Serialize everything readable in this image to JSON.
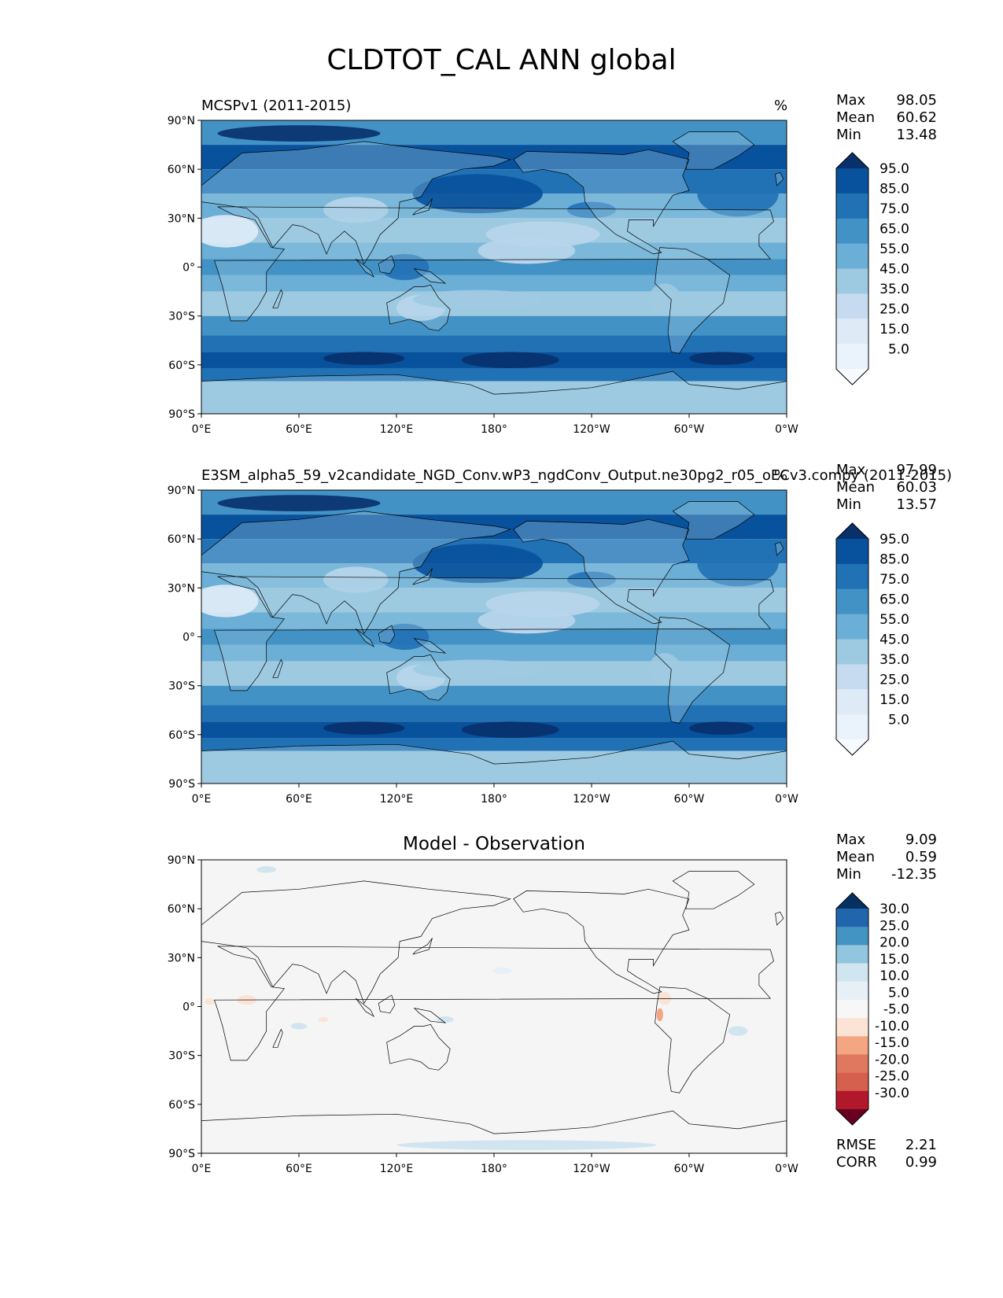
{
  "figure": {
    "title": "CLDTOT_CAL ANN global"
  },
  "chart_data": [
    {
      "type": "heatmap",
      "panel": "test",
      "title": "MCSPv1 (2011-2015)",
      "units": "%",
      "stats": [
        {
          "label": "Max",
          "value": "98.05"
        },
        {
          "label": "Mean",
          "value": "60.62"
        },
        {
          "label": "Min",
          "value": "13.48"
        }
      ],
      "colorbar": {
        "levels": [
          "95.0",
          "85.0",
          "75.0",
          "65.0",
          "55.0",
          "45.0",
          "35.0",
          "25.0",
          "15.0",
          "5.0"
        ],
        "colors": [
          "#08306b",
          "#08519c",
          "#2171b5",
          "#4292c6",
          "#6baed6",
          "#9ecae1",
          "#c6dbef",
          "#deebf7",
          "#eaf2fb",
          "#f7fbff"
        ]
      },
      "x_ticks": [
        "0°E",
        "60°E",
        "120°E",
        "180°",
        "120°W",
        "60°W",
        "0°W"
      ],
      "y_ticks": [
        "90°N",
        "60°N",
        "30°N",
        "0°",
        "30°S",
        "60°S",
        "90°S"
      ],
      "xlim": [
        0,
        360
      ],
      "ylim": [
        -90,
        90
      ]
    },
    {
      "type": "heatmap",
      "panel": "reference",
      "title": "E3SM_alpha5_59_v2candidate_NGD_Conv.wP3_ngdConv_Output.ne30pg2_r05_oECv3.compy (2011-2015)",
      "units": "%",
      "stats": [
        {
          "label": "Max",
          "value": "97.99"
        },
        {
          "label": "Mean",
          "value": "60.03"
        },
        {
          "label": "Min",
          "value": "13.57"
        }
      ],
      "colorbar": {
        "levels": [
          "95.0",
          "85.0",
          "75.0",
          "65.0",
          "55.0",
          "45.0",
          "35.0",
          "25.0",
          "15.0",
          "5.0"
        ],
        "colors": [
          "#08306b",
          "#08519c",
          "#2171b5",
          "#4292c6",
          "#6baed6",
          "#9ecae1",
          "#c6dbef",
          "#deebf7",
          "#eaf2fb",
          "#f7fbff"
        ]
      },
      "x_ticks": [
        "0°E",
        "60°E",
        "120°E",
        "180°",
        "120°W",
        "60°W",
        "0°W"
      ],
      "y_ticks": [
        "90°N",
        "60°N",
        "30°N",
        "0°",
        "30°S",
        "60°S",
        "90°S"
      ],
      "xlim": [
        0,
        360
      ],
      "ylim": [
        -90,
        90
      ]
    },
    {
      "type": "heatmap",
      "panel": "difference",
      "title": "Model - Observation",
      "stats": [
        {
          "label": "Max",
          "value": "9.09"
        },
        {
          "label": "Mean",
          "value": "0.59"
        },
        {
          "label": "Min",
          "value": "-12.35"
        }
      ],
      "metrics": [
        {
          "label": "RMSE",
          "value": "2.21"
        },
        {
          "label": "CORR",
          "value": "0.99"
        }
      ],
      "colorbar": {
        "levels": [
          "30.0",
          "25.0",
          "20.0",
          "15.0",
          "10.0",
          "5.0",
          "-5.0",
          "-10.0",
          "-15.0",
          "-20.0",
          "-25.0",
          "-30.0"
        ],
        "colors": [
          "#053061",
          "#2166ac",
          "#4393c3",
          "#92c5de",
          "#d1e5f0",
          "#e7f0f6",
          "#f7f7f7",
          "#fbe4d6",
          "#f4a582",
          "#e0785f",
          "#d6604d",
          "#b2182b",
          "#67001f"
        ]
      },
      "x_ticks": [
        "0°E",
        "60°E",
        "120°E",
        "180°",
        "120°W",
        "60°W",
        "0°W"
      ],
      "y_ticks": [
        "90°N",
        "60°N",
        "30°N",
        "0°",
        "30°S",
        "60°S",
        "90°S"
      ],
      "xlim": [
        0,
        360
      ],
      "ylim": [
        -90,
        90
      ]
    }
  ]
}
